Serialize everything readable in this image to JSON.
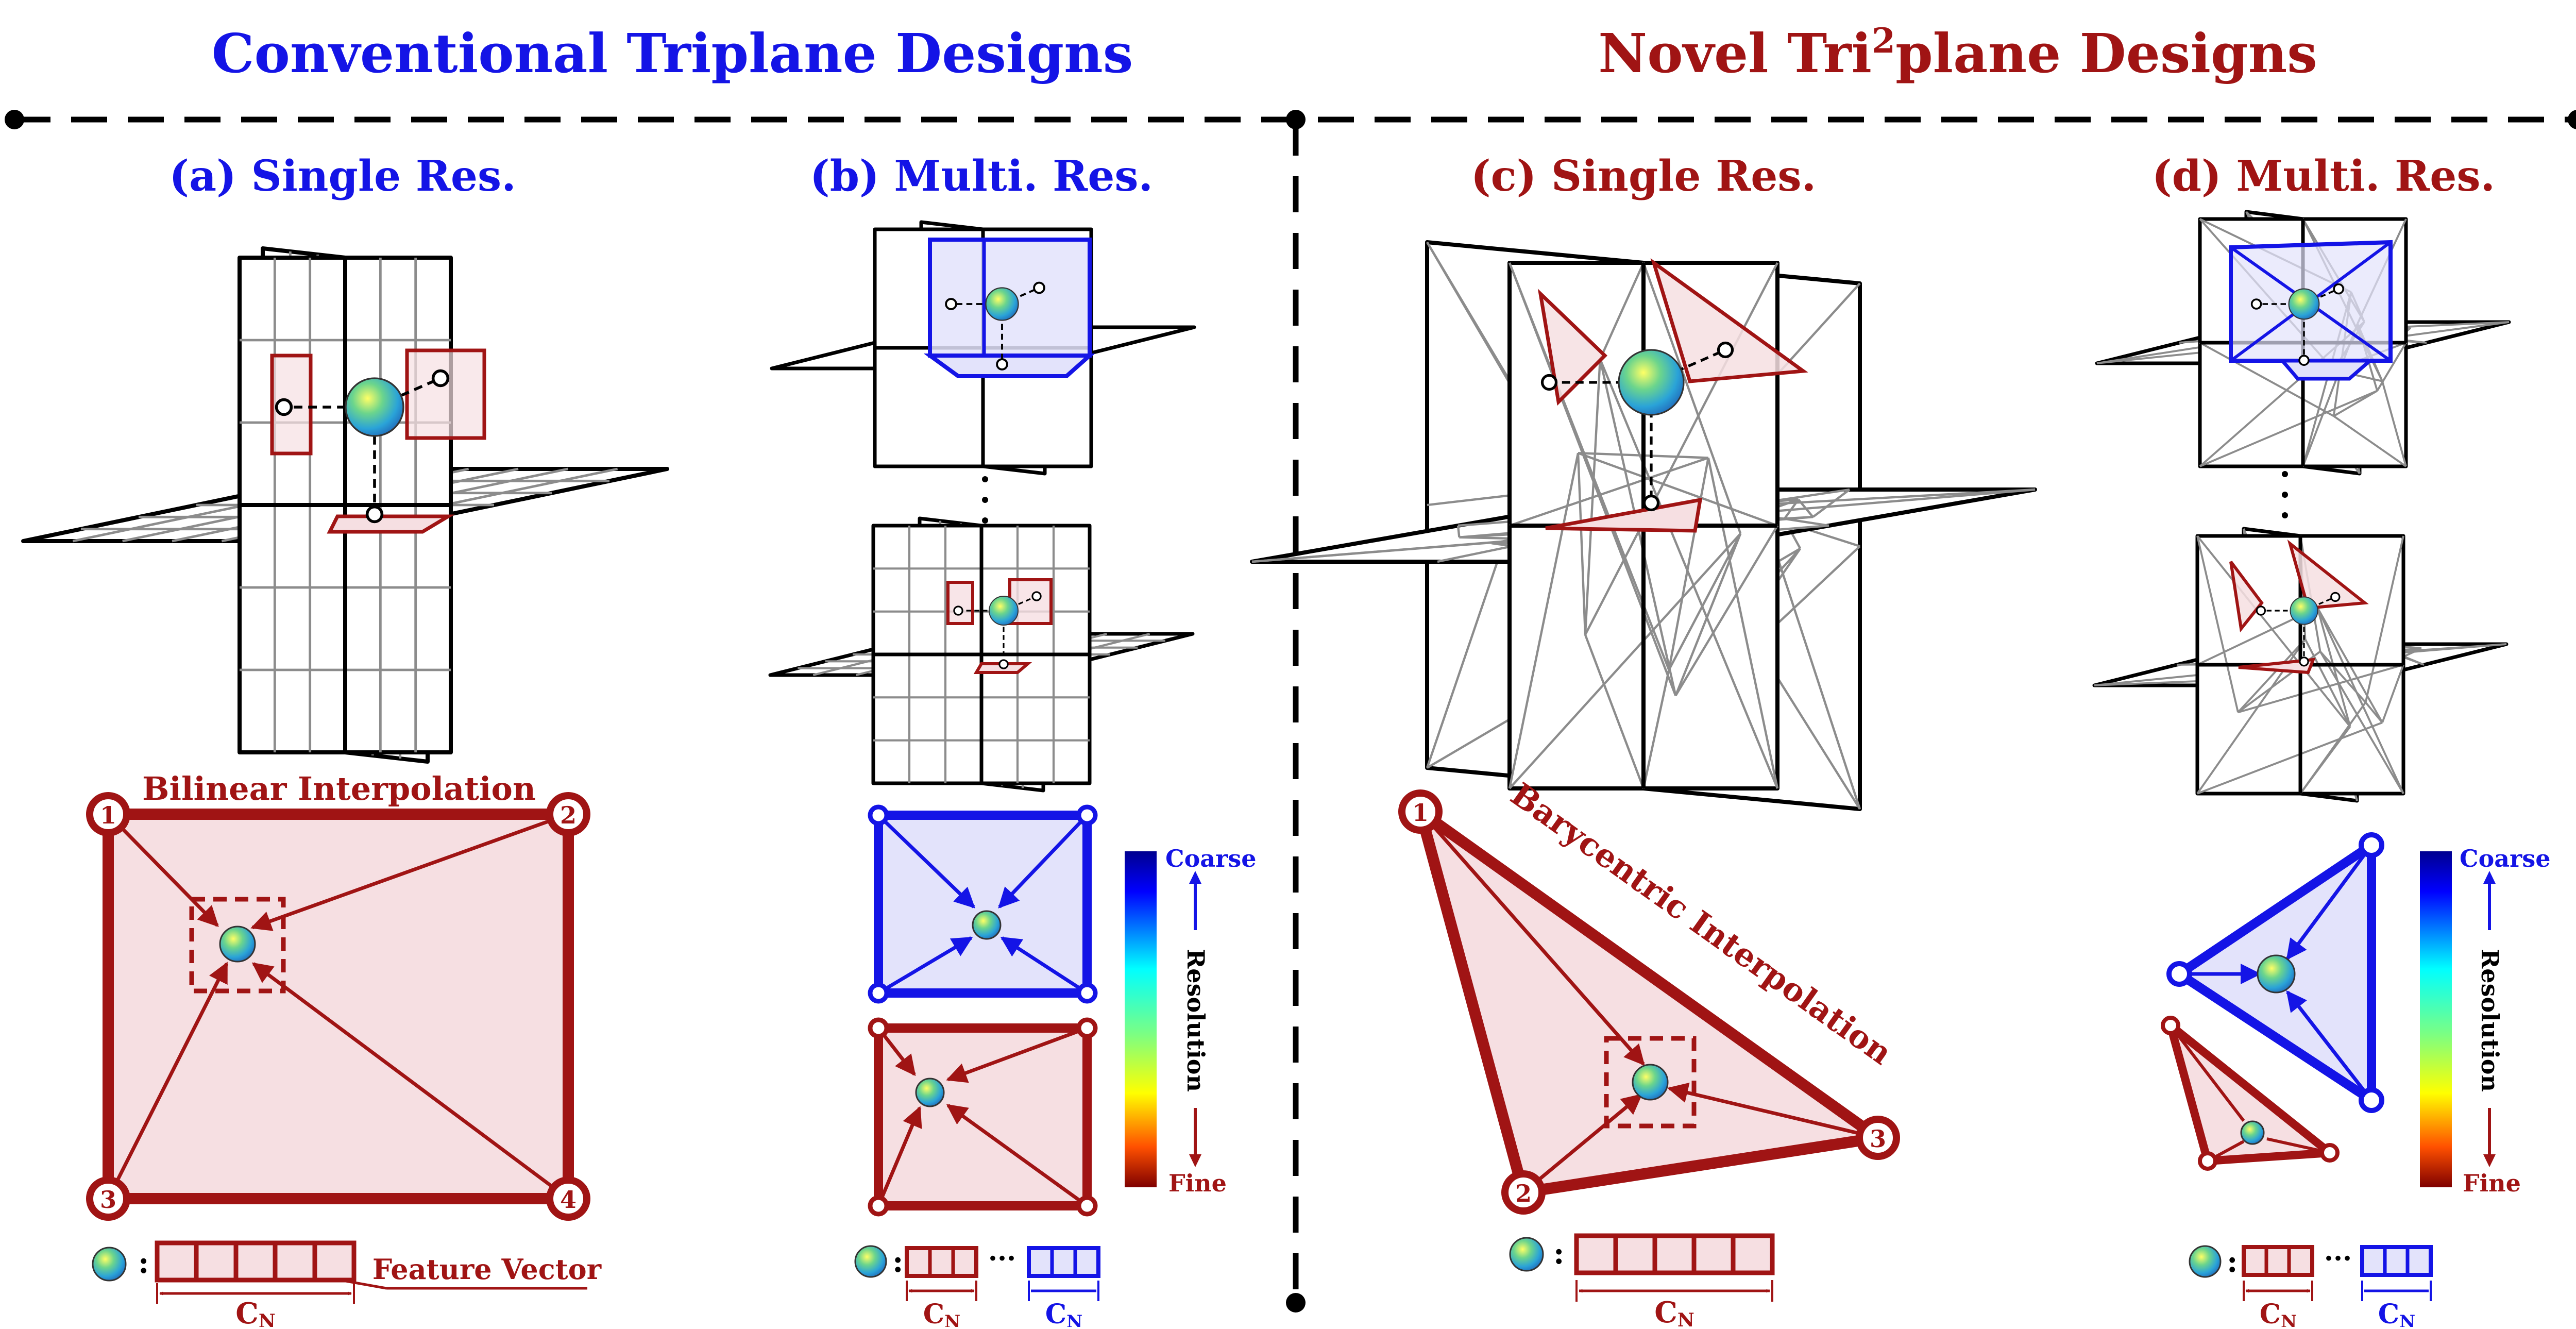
{
  "header": {
    "left_title": "Conventional Triplane Designs",
    "right_title_prefix": "Novel Tri",
    "right_title_sup": "2",
    "right_title_suffix": "plane Designs"
  },
  "panels": {
    "a": {
      "label": "(a) Single Res."
    },
    "b": {
      "label": "(b) Multi. Res."
    },
    "c": {
      "label": "(c) Single Res."
    },
    "d": {
      "label": "(d) Multi. Res."
    }
  },
  "interp": {
    "bilinear": "Bilinear Interpolation",
    "barycentric": "Barycentric Interpolation"
  },
  "corners": {
    "n1": "1",
    "n2": "2",
    "n3": "3",
    "n4": "4"
  },
  "colorbar": {
    "top": "Coarse",
    "bottom": "Fine",
    "middle": "Resolution"
  },
  "feature": {
    "label": "Feature Vector",
    "cn": "C",
    "cn_sub": "N",
    "colon": ":",
    "ellipsis": "···"
  },
  "colors": {
    "blue_text": "#1414e6",
    "dark_red": "#a01414",
    "pink_fill": "#f6dfe2",
    "lavender_fill": "#e3e3fb",
    "plane_gray": "#8c8c8c"
  }
}
